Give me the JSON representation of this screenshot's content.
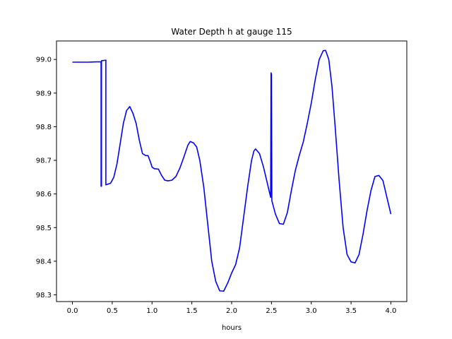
{
  "chart_data": {
    "type": "line",
    "title": "Water Depth h at gauge 115",
    "xlabel": "hours",
    "ylabel": "",
    "xlim": [
      -0.2,
      4.2
    ],
    "ylim": [
      98.28,
      99.055
    ],
    "x_ticks": [
      0.0,
      0.5,
      1.0,
      1.5,
      2.0,
      2.5,
      3.0,
      3.5,
      4.0
    ],
    "x_tick_labels": [
      "0.0",
      "0.5",
      "1.0",
      "1.5",
      "2.0",
      "2.5",
      "3.0",
      "3.5",
      "4.0"
    ],
    "y_ticks": [
      98.3,
      98.4,
      98.5,
      98.6,
      98.7,
      98.8,
      98.9,
      99.0
    ],
    "y_tick_labels": [
      "98.3",
      "98.4",
      "98.5",
      "98.6",
      "98.7",
      "98.8",
      "98.9",
      "99.0"
    ],
    "grid": false,
    "legend": "none",
    "series": [
      {
        "color": "#0000ff",
        "points": [
          [
            0.0,
            98.992
          ],
          [
            0.1,
            98.992
          ],
          [
            0.2,
            98.992
          ],
          [
            0.3,
            98.993
          ],
          [
            0.36,
            98.993
          ],
          [
            0.36,
            98.623
          ],
          [
            0.365,
            98.623
          ],
          [
            0.365,
            98.996
          ],
          [
            0.42,
            98.998
          ],
          [
            0.42,
            98.627
          ],
          [
            0.48,
            98.632
          ],
          [
            0.52,
            98.65
          ],
          [
            0.56,
            98.69
          ],
          [
            0.6,
            98.75
          ],
          [
            0.64,
            98.81
          ],
          [
            0.68,
            98.848
          ],
          [
            0.72,
            98.86
          ],
          [
            0.76,
            98.84
          ],
          [
            0.8,
            98.81
          ],
          [
            0.84,
            98.76
          ],
          [
            0.88,
            98.72
          ],
          [
            0.92,
            98.714
          ],
          [
            0.95,
            98.714
          ],
          [
            0.98,
            98.695
          ],
          [
            1.0,
            98.68
          ],
          [
            1.03,
            98.675
          ],
          [
            1.08,
            98.674
          ],
          [
            1.12,
            98.655
          ],
          [
            1.16,
            98.641
          ],
          [
            1.2,
            98.639
          ],
          [
            1.25,
            98.641
          ],
          [
            1.3,
            98.652
          ],
          [
            1.35,
            98.677
          ],
          [
            1.4,
            98.71
          ],
          [
            1.45,
            98.745
          ],
          [
            1.48,
            98.756
          ],
          [
            1.52,
            98.752
          ],
          [
            1.56,
            98.74
          ],
          [
            1.6,
            98.7
          ],
          [
            1.65,
            98.62
          ],
          [
            1.7,
            98.51
          ],
          [
            1.75,
            98.4
          ],
          [
            1.8,
            98.34
          ],
          [
            1.85,
            98.312
          ],
          [
            1.9,
            98.311
          ],
          [
            1.95,
            98.335
          ],
          [
            2.0,
            98.365
          ],
          [
            2.05,
            98.39
          ],
          [
            2.1,
            98.44
          ],
          [
            2.15,
            98.53
          ],
          [
            2.2,
            98.62
          ],
          [
            2.25,
            98.7
          ],
          [
            2.28,
            98.728
          ],
          [
            2.3,
            98.734
          ],
          [
            2.35,
            98.72
          ],
          [
            2.4,
            98.68
          ],
          [
            2.45,
            98.63
          ],
          [
            2.48,
            98.6
          ],
          [
            2.49,
            98.59
          ],
          [
            2.495,
            98.96
          ],
          [
            2.5,
            98.955
          ],
          [
            2.505,
            98.58
          ],
          [
            2.55,
            98.54
          ],
          [
            2.6,
            98.512
          ],
          [
            2.65,
            98.51
          ],
          [
            2.7,
            98.545
          ],
          [
            2.75,
            98.61
          ],
          [
            2.8,
            98.67
          ],
          [
            2.85,
            98.715
          ],
          [
            2.9,
            98.755
          ],
          [
            2.95,
            98.81
          ],
          [
            3.0,
            98.87
          ],
          [
            3.05,
            98.94
          ],
          [
            3.1,
            99.0
          ],
          [
            3.15,
            99.026
          ],
          [
            3.18,
            99.027
          ],
          [
            3.22,
            99.0
          ],
          [
            3.26,
            98.92
          ],
          [
            3.3,
            98.8
          ],
          [
            3.35,
            98.64
          ],
          [
            3.4,
            98.5
          ],
          [
            3.45,
            98.42
          ],
          [
            3.5,
            98.398
          ],
          [
            3.55,
            98.395
          ],
          [
            3.6,
            98.42
          ],
          [
            3.65,
            98.48
          ],
          [
            3.7,
            98.55
          ],
          [
            3.75,
            98.61
          ],
          [
            3.8,
            98.652
          ],
          [
            3.85,
            98.655
          ],
          [
            3.9,
            98.64
          ],
          [
            3.95,
            98.59
          ],
          [
            4.0,
            98.54
          ]
        ]
      }
    ]
  }
}
